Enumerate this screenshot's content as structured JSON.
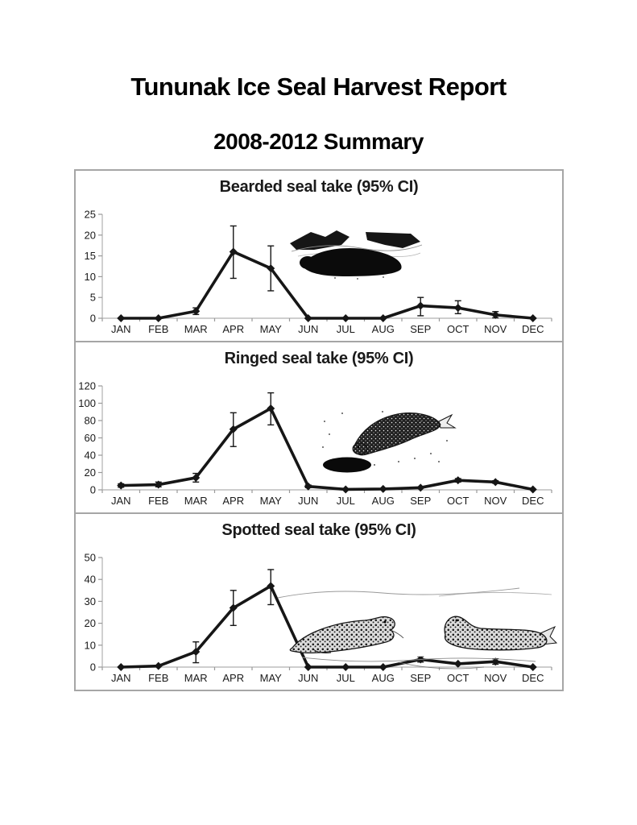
{
  "document": {
    "title": "Tununak Ice Seal Harvest Report",
    "subtitle": "2008-2012 Summary"
  },
  "colors": {
    "ink": "#161616",
    "axis_line": "#b0b0b0",
    "tick": "#9a9a9a",
    "label_text": "#1a1a1a",
    "panel_border": "#a6a6a6",
    "background": "#ffffff"
  },
  "chart_data": [
    {
      "type": "line",
      "title": "Bearded seal take (95% CI)",
      "categories": [
        "JAN",
        "FEB",
        "MAR",
        "APR",
        "MAY",
        "JUN",
        "JUL",
        "AUG",
        "SEP",
        "OCT",
        "NOV",
        "DEC"
      ],
      "values": [
        0,
        0,
        1.7,
        16,
        12,
        0,
        0,
        0,
        3,
        2.5,
        0.8,
        0
      ],
      "ci_low": [
        0,
        0,
        0.9,
        9.6,
        6.6,
        0,
        0,
        0,
        0.6,
        1.1,
        0.1,
        0
      ],
      "ci_high": [
        0,
        0,
        2.5,
        22.2,
        17.4,
        0,
        0,
        0,
        5.0,
        4.2,
        1.6,
        0
      ],
      "ylim": [
        0,
        25
      ],
      "yticks": [
        0,
        5,
        10,
        15,
        20,
        25
      ],
      "xlabel": "",
      "ylabel": "",
      "grid": false,
      "legend": "none",
      "error_bars": "95% CI",
      "marker": "diamond",
      "illustration": "bearded-seal-on-ice"
    },
    {
      "type": "line",
      "title": "Ringed seal take (95% CI)",
      "categories": [
        "JAN",
        "FEB",
        "MAR",
        "APR",
        "MAY",
        "JUN",
        "JUL",
        "AUG",
        "SEP",
        "OCT",
        "NOV",
        "DEC"
      ],
      "values": [
        5,
        6,
        14,
        70,
        94,
        4,
        0.5,
        1,
        2.5,
        11,
        9,
        0.5
      ],
      "ci_low": [
        3,
        3.5,
        9,
        50,
        75,
        2.5,
        0.5,
        1,
        2.5,
        9,
        7.5,
        0.5
      ],
      "ci_high": [
        7,
        9,
        19,
        89,
        112,
        5.5,
        0.5,
        1,
        2.5,
        13,
        10.5,
        0.5
      ],
      "ylim": [
        0,
        120
      ],
      "yticks": [
        0,
        20,
        40,
        60,
        80,
        100,
        120
      ],
      "xlabel": "",
      "ylabel": "",
      "grid": false,
      "legend": "none",
      "error_bars": "95% CI",
      "marker": "diamond",
      "illustration": "ringed-seal-at-breathing-hole"
    },
    {
      "type": "line",
      "title": "Spotted seal take (95% CI)",
      "categories": [
        "JAN",
        "FEB",
        "MAR",
        "APR",
        "MAY",
        "JUN",
        "JUL",
        "AUG",
        "SEP",
        "OCT",
        "NOV",
        "DEC"
      ],
      "values": [
        0,
        0.5,
        7,
        27,
        37,
        0,
        0,
        0,
        3.5,
        1.5,
        2.5,
        0
      ],
      "ci_low": [
        0,
        0.5,
        2,
        19,
        28.5,
        0,
        0,
        0,
        2.3,
        1.5,
        1.3,
        0
      ],
      "ci_high": [
        0,
        0.5,
        11.5,
        35,
        44.5,
        0,
        0,
        0,
        4.8,
        1.5,
        3.8,
        0
      ],
      "ylim": [
        0,
        50
      ],
      "yticks": [
        0,
        10,
        20,
        30,
        40,
        50
      ],
      "xlabel": "",
      "ylabel": "",
      "grid": false,
      "legend": "none",
      "error_bars": "95% CI",
      "marker": "diamond",
      "illustration": "two-spotted-seals-on-ice"
    }
  ]
}
